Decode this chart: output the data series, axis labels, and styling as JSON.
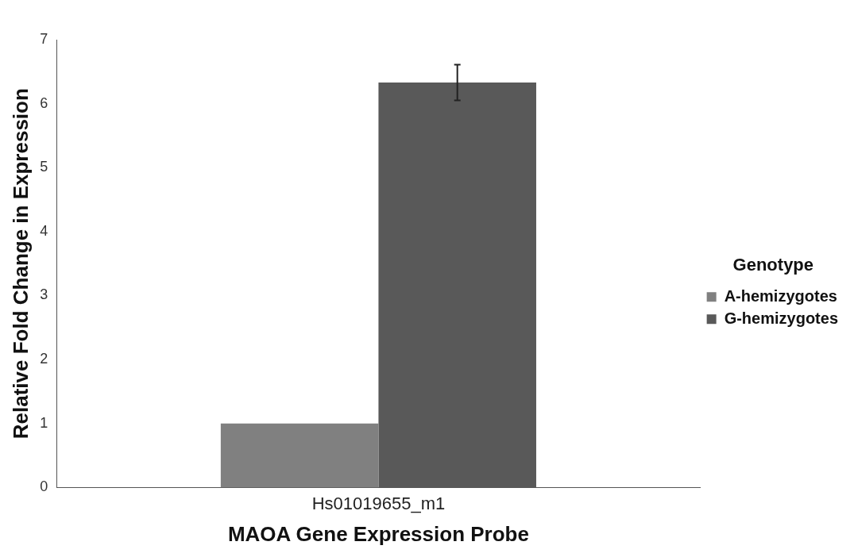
{
  "chart_data": {
    "type": "bar",
    "xlabel": "MAOA Gene Expression Probe",
    "ylabel": "Relative Fold Change in Expression",
    "legend_title": "Genotype",
    "categories": [
      "Hs01019655_m1"
    ],
    "series": [
      {
        "name": "A-hemizygotes",
        "color": "#808080",
        "values": [
          1.0
        ]
      },
      {
        "name": "G-hemizygotes",
        "color": "#595959",
        "values": [
          6.33
        ],
        "errors": [
          0.28
        ]
      }
    ],
    "ylim": [
      0,
      7
    ],
    "yticks": [
      0,
      1,
      2,
      3,
      4,
      5,
      6,
      7
    ],
    "grid": false,
    "legend": "right"
  }
}
